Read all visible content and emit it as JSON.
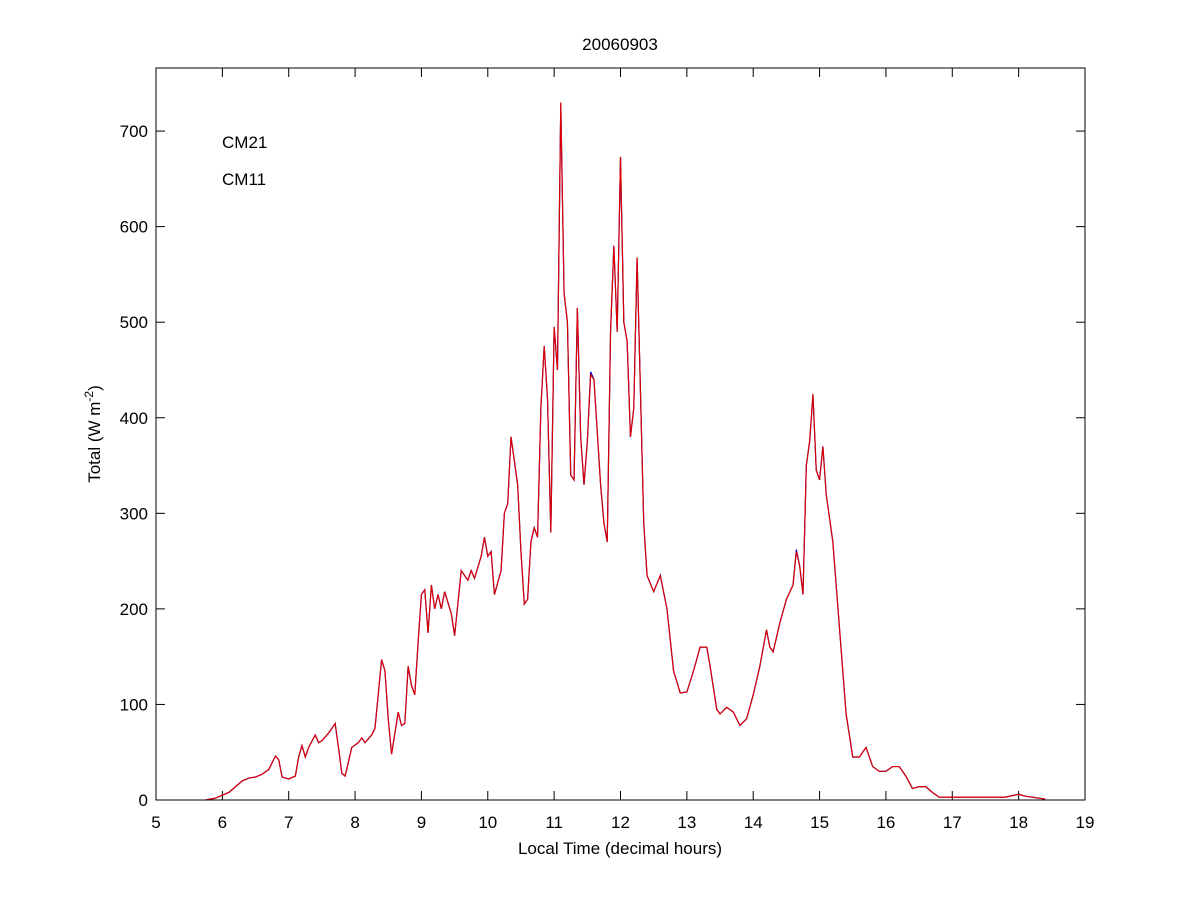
{
  "chart_data": {
    "type": "line",
    "title": "20060903",
    "xlabel": "Local Time (decimal hours)",
    "ylabel": [
      "Total (W m",
      "-2",
      ")"
    ],
    "xlim": [
      5,
      19
    ],
    "xticks": [
      5,
      6,
      7,
      8,
      9,
      10,
      11,
      12,
      13,
      14,
      15,
      16,
      17,
      18,
      19
    ],
    "ylim": [
      0,
      766
    ],
    "yticks": [
      0,
      100,
      200,
      300,
      400,
      500,
      600,
      700
    ],
    "legend": "upper left",
    "x": [
      5.75,
      5.9,
      6.0,
      6.1,
      6.2,
      6.3,
      6.4,
      6.5,
      6.6,
      6.7,
      6.8,
      6.85,
      6.9,
      7.0,
      7.1,
      7.15,
      7.2,
      7.25,
      7.3,
      7.4,
      7.45,
      7.5,
      7.6,
      7.7,
      7.75,
      7.8,
      7.85,
      7.95,
      8.05,
      8.1,
      8.15,
      8.25,
      8.3,
      8.4,
      8.45,
      8.5,
      8.55,
      8.6,
      8.65,
      8.7,
      8.75,
      8.8,
      8.85,
      8.9,
      8.95,
      9.0,
      9.05,
      9.1,
      9.15,
      9.2,
      9.25,
      9.3,
      9.35,
      9.45,
      9.5,
      9.6,
      9.7,
      9.75,
      9.8,
      9.9,
      9.95,
      10.0,
      10.05,
      10.1,
      10.2,
      10.25,
      10.3,
      10.35,
      10.4,
      10.45,
      10.5,
      10.55,
      10.6,
      10.65,
      10.7,
      10.75,
      10.8,
      10.85,
      10.9,
      10.95,
      11.0,
      11.05,
      11.1,
      11.15,
      11.2,
      11.25,
      11.3,
      11.35,
      11.4,
      11.45,
      11.5,
      11.55,
      11.6,
      11.7,
      11.75,
      11.8,
      11.85,
      11.9,
      11.95,
      12.0,
      12.05,
      12.1,
      12.15,
      12.2,
      12.25,
      12.3,
      12.35,
      12.4,
      12.5,
      12.6,
      12.7,
      12.8,
      12.9,
      13.0,
      13.1,
      13.2,
      13.3,
      13.35,
      13.45,
      13.5,
      13.6,
      13.7,
      13.8,
      13.9,
      14.0,
      14.1,
      14.2,
      14.25,
      14.3,
      14.4,
      14.5,
      14.6,
      14.65,
      14.7,
      14.75,
      14.8,
      14.85,
      14.9,
      14.95,
      15.0,
      15.05,
      15.1,
      15.2,
      15.3,
      15.4,
      15.5,
      15.6,
      15.7,
      15.8,
      15.9,
      16.0,
      16.1,
      16.2,
      16.3,
      16.4,
      16.5,
      16.6,
      16.7,
      16.8,
      16.9,
      17.0,
      17.2,
      17.5,
      17.8,
      18.0,
      18.1,
      18.4
    ],
    "series": [
      {
        "name": "CM21",
        "color": "#0000cc",
        "values": [
          0,
          2,
          5,
          8,
          14,
          20,
          23,
          24,
          27,
          32,
          46,
          42,
          24,
          22,
          25,
          45,
          57,
          45,
          55,
          68,
          60,
          62,
          70,
          80,
          55,
          28,
          25,
          55,
          60,
          65,
          60,
          68,
          75,
          147,
          135,
          85,
          48,
          70,
          92,
          78,
          80,
          140,
          120,
          110,
          165,
          215,
          220,
          175,
          225,
          200,
          215,
          200,
          218,
          195,
          172,
          240,
          230,
          240,
          232,
          255,
          275,
          255,
          260,
          215,
          240,
          300,
          310,
          380,
          355,
          330,
          260,
          205,
          210,
          270,
          285,
          275,
          410,
          475,
          420,
          280,
          495,
          450,
          728,
          530,
          500,
          340,
          335,
          515,
          380,
          330,
          375,
          448,
          440,
          330,
          290,
          270,
          490,
          580,
          490,
          672,
          500,
          480,
          380,
          410,
          566,
          430,
          290,
          235,
          218,
          235,
          200,
          135,
          112,
          113,
          135,
          160,
          160,
          140,
          95,
          90,
          97,
          92,
          78,
          85,
          110,
          140,
          178,
          160,
          155,
          185,
          210,
          225,
          262,
          245,
          215,
          350,
          375,
          423,
          345,
          335,
          370,
          320,
          270,
          180,
          90,
          45,
          45,
          55,
          35,
          30,
          30,
          35,
          35,
          25,
          12,
          14,
          14,
          8,
          3,
          3,
          3,
          3,
          3,
          3,
          6,
          4,
          1
        ]
      },
      {
        "name": "CM11",
        "color": "#dd0000",
        "values": [
          0,
          2,
          5,
          8,
          14,
          20,
          23,
          24,
          27,
          32,
          46,
          42,
          24,
          22,
          25,
          45,
          57,
          45,
          55,
          68,
          60,
          62,
          70,
          80,
          55,
          28,
          25,
          55,
          60,
          65,
          60,
          68,
          75,
          147,
          135,
          85,
          48,
          70,
          92,
          78,
          80,
          140,
          120,
          110,
          165,
          215,
          220,
          175,
          225,
          200,
          215,
          200,
          218,
          195,
          172,
          240,
          230,
          240,
          232,
          255,
          275,
          255,
          260,
          215,
          240,
          300,
          310,
          380,
          355,
          330,
          260,
          205,
          210,
          270,
          285,
          275,
          410,
          475,
          420,
          280,
          495,
          450,
          730,
          530,
          500,
          340,
          335,
          515,
          380,
          330,
          375,
          445,
          440,
          330,
          290,
          270,
          490,
          580,
          490,
          673,
          500,
          480,
          380,
          410,
          568,
          430,
          290,
          235,
          218,
          235,
          200,
          135,
          112,
          113,
          135,
          160,
          160,
          140,
          95,
          90,
          97,
          92,
          78,
          85,
          110,
          140,
          178,
          160,
          155,
          185,
          210,
          225,
          260,
          245,
          215,
          350,
          375,
          425,
          345,
          335,
          370,
          320,
          270,
          180,
          90,
          45,
          45,
          55,
          35,
          30,
          30,
          35,
          35,
          25,
          12,
          14,
          14,
          8,
          3,
          3,
          3,
          3,
          3,
          3,
          6,
          4,
          1
        ]
      }
    ]
  }
}
